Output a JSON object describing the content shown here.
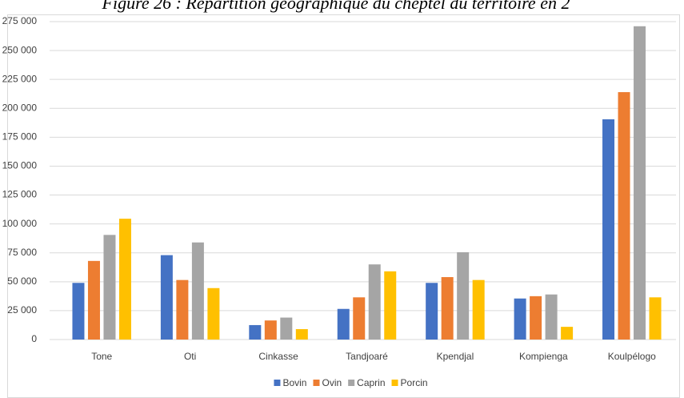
{
  "chart_data": {
    "type": "bar",
    "title": "Figure 26 : Répartition géographique du cheptel du territoire en 2",
    "categories": [
      "Tone",
      "Oti",
      "Cinkasse",
      "Tandjoaré",
      "Kpendjal",
      "Kompienga",
      "Koulpélogo"
    ],
    "series": [
      {
        "name": "Bovin",
        "color": "#4472c4",
        "values": [
          49000,
          73000,
          12500,
          26500,
          49000,
          35500,
          190500
        ]
      },
      {
        "name": "Ovin",
        "color": "#ed7d31",
        "values": [
          68000,
          51500,
          16500,
          36500,
          54000,
          37500,
          214000
        ]
      },
      {
        "name": "Caprin",
        "color": "#a5a5a5",
        "values": [
          90500,
          84000,
          19000,
          65000,
          75500,
          39000,
          271000
        ]
      },
      {
        "name": "Porcin",
        "color": "#ffc000",
        "values": [
          104500,
          44500,
          9000,
          59000,
          51500,
          11000,
          36500
        ]
      }
    ],
    "ylim": [
      0,
      275000
    ],
    "yticks": [
      0,
      {
        "value": 25000,
        "label": "25 000"
      },
      {
        "value": 50000,
        "label": "50 000"
      },
      {
        "value": 75000,
        "label": "75 000"
      },
      {
        "value": 100000,
        "label": "100 000"
      },
      {
        "value": 125000,
        "label": "125 000"
      },
      {
        "value": 150000,
        "label": "150 000"
      },
      {
        "value": 175000,
        "label": "175 000"
      },
      {
        "value": 200000,
        "label": "200 000"
      },
      {
        "value": 225000,
        "label": "225 000"
      },
      {
        "value": 250000,
        "label": "250 000"
      },
      {
        "value": 275000,
        "label": "275 000"
      }
    ],
    "grid": true,
    "legend": "bottom"
  }
}
